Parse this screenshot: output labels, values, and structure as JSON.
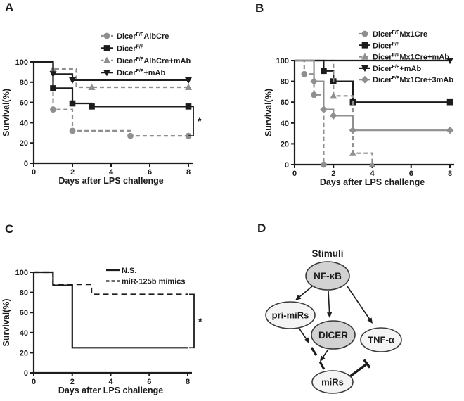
{
  "figure": {
    "colors": {
      "black": "#1c1c1c",
      "gray": "#8f8f8f",
      "node_dark_fill": "#d2d2d2",
      "node_light_fill": "#f4f4f4",
      "node_stroke": "#3a3a3a",
      "background": "#ffffff"
    }
  },
  "chart_data": [
    {
      "panel_label": "A",
      "type": "line",
      "subtype": "kaplan-meier-step",
      "title": "",
      "xlabel": "Days after LPS challenge",
      "ylabel": "Survival(%)",
      "xlim": [
        0,
        8
      ],
      "ylim": [
        0,
        100
      ],
      "xticks": [
        0,
        2,
        4,
        6,
        8
      ],
      "yticks": [
        0,
        20,
        40,
        60,
        80,
        100
      ],
      "grid": false,
      "legend_position": "top-right-inside",
      "series": [
        {
          "name": "Dicer F/F AlbCre",
          "label_parts": [
            {
              "text": "Dicer"
            },
            {
              "text": "F/F",
              "sup": true
            },
            {
              "text": "AlbCre"
            }
          ],
          "color": "gray",
          "line": "dashed",
          "marker": "circle",
          "steps": [
            [
              0,
              100
            ],
            [
              1,
              53
            ],
            [
              2,
              32
            ],
            [
              5,
              27
            ],
            [
              8,
              27
            ]
          ],
          "markers": [
            [
              1,
              53
            ],
            [
              2,
              32
            ],
            [
              5,
              27
            ],
            [
              8,
              27
            ]
          ]
        },
        {
          "name": "Dicer F/F",
          "label_parts": [
            {
              "text": "Dicer"
            },
            {
              "text": "F/F",
              "sup": true
            }
          ],
          "color": "black",
          "line": "solid",
          "marker": "square",
          "steps": [
            [
              0,
              100
            ],
            [
              1,
              74
            ],
            [
              2,
              59
            ],
            [
              3,
              56
            ],
            [
              8,
              56
            ]
          ],
          "markers": [
            [
              1,
              74
            ],
            [
              2,
              59
            ],
            [
              3,
              56
            ],
            [
              8,
              56
            ]
          ]
        },
        {
          "name": "Dicer F/F AlbCre+mAb",
          "label_parts": [
            {
              "text": "Dicer"
            },
            {
              "text": "F/F",
              "sup": true
            },
            {
              "text": "AlbCre+mAb"
            }
          ],
          "color": "gray",
          "line": "dashed",
          "marker": "triangle-up",
          "steps": [
            [
              0,
              100
            ],
            [
              1,
              93
            ],
            [
              2.2,
              75
            ],
            [
              8,
              75
            ]
          ],
          "markers": [
            [
              1,
              93
            ],
            [
              3,
              75
            ],
            [
              8,
              75
            ]
          ]
        },
        {
          "name": "Dicer F/F+mAb",
          "label_parts": [
            {
              "text": "Dicer"
            },
            {
              "text": "F/F",
              "sup": true
            },
            {
              "text": "+mAb"
            }
          ],
          "color": "black",
          "line": "solid",
          "marker": "triangle-down",
          "steps": [
            [
              0,
              100
            ],
            [
              1,
              88
            ],
            [
              2,
              82
            ],
            [
              8,
              82
            ]
          ],
          "markers": [
            [
              1,
              88
            ],
            [
              2,
              82
            ],
            [
              8,
              82
            ]
          ]
        }
      ],
      "significance": {
        "label": "*",
        "between": [
          "Dicer F/F",
          "Dicer F/F AlbCre"
        ],
        "from_pct": 56,
        "to_pct": 27
      }
    },
    {
      "panel_label": "B",
      "type": "line",
      "subtype": "kaplan-meier-step",
      "title": "",
      "xlabel": "Days after LPS challenge",
      "ylabel": "Survival(%)",
      "xlim": [
        0,
        8
      ],
      "ylim": [
        0,
        100
      ],
      "xticks": [
        0,
        2,
        4,
        6,
        8
      ],
      "yticks": [
        0,
        20,
        40,
        60,
        80,
        100
      ],
      "grid": false,
      "legend_position": "top-right-inside",
      "series": [
        {
          "name": "Dicer F/F Mx1Cre",
          "label_parts": [
            {
              "text": "Dicer"
            },
            {
              "text": "F/F",
              "sup": true
            },
            {
              "text": "Mx1Cre"
            }
          ],
          "color": "gray",
          "line": "dashed",
          "marker": "circle",
          "steps": [
            [
              0,
              100
            ],
            [
              0.5,
              87
            ],
            [
              1,
              67
            ],
            [
              1.5,
              0
            ]
          ],
          "markers": [
            [
              0.5,
              87
            ],
            [
              1,
              67
            ],
            [
              1.5,
              0
            ]
          ]
        },
        {
          "name": "Dicer F/F",
          "label_parts": [
            {
              "text": "Dicer"
            },
            {
              "text": "F/F",
              "sup": true
            }
          ],
          "color": "black",
          "line": "solid",
          "marker": "square",
          "steps": [
            [
              0,
              100
            ],
            [
              1.5,
              90
            ],
            [
              2,
              80
            ],
            [
              3,
              60
            ],
            [
              8,
              60
            ]
          ],
          "markers": [
            [
              1.5,
              90
            ],
            [
              2,
              80
            ],
            [
              3,
              60
            ],
            [
              8,
              60
            ]
          ]
        },
        {
          "name": "Dicer F/F Mx1Cre+mAb",
          "label_parts": [
            {
              "text": "Dicer"
            },
            {
              "text": "F/F",
              "sup": true
            },
            {
              "text": "Mx1Cre+mAb"
            }
          ],
          "color": "gray",
          "line": "dashed",
          "marker": "triangle-up",
          "steps": [
            [
              0,
              100
            ],
            [
              2,
              66
            ],
            [
              3,
              11
            ],
            [
              4,
              0
            ]
          ],
          "markers": [
            [
              2,
              66
            ],
            [
              3,
              11
            ],
            [
              4,
              0
            ]
          ]
        },
        {
          "name": "Dicer F/F+mAb",
          "label_parts": [
            {
              "text": "Dicer"
            },
            {
              "text": "F/F",
              "sup": true
            },
            {
              "text": "+mAb"
            }
          ],
          "color": "black",
          "line": "solid",
          "marker": "triangle-down",
          "steps": [
            [
              0,
              100
            ],
            [
              8,
              100
            ]
          ],
          "markers": [
            [
              8,
              100
            ]
          ]
        },
        {
          "name": "Dicer F/F Mx1Cre+3mAb",
          "label_parts": [
            {
              "text": "Dicer"
            },
            {
              "text": "F/F",
              "sup": true
            },
            {
              "text": "Mx1Cre+3mAb"
            }
          ],
          "color": "gray",
          "line": "solid",
          "marker": "diamond",
          "steps": [
            [
              0,
              100
            ],
            [
              1,
              80
            ],
            [
              1.5,
              53
            ],
            [
              2,
              47
            ],
            [
              3,
              33
            ],
            [
              8,
              33
            ]
          ],
          "markers": [
            [
              1,
              80
            ],
            [
              1.5,
              53
            ],
            [
              2,
              47
            ],
            [
              3,
              33
            ],
            [
              8,
              33
            ]
          ]
        }
      ],
      "significance": null
    },
    {
      "panel_label": "C",
      "type": "line",
      "subtype": "kaplan-meier-step",
      "title": "",
      "xlabel": "Days after LPS challenge",
      "ylabel": "Survival(%)",
      "xlim": [
        0,
        8
      ],
      "ylim": [
        0,
        100
      ],
      "xticks": [
        0,
        2,
        4,
        6,
        8
      ],
      "yticks": [
        0,
        20,
        40,
        60,
        80,
        100
      ],
      "grid": false,
      "legend_position": "top-right-inside",
      "series": [
        {
          "name": "N.S.",
          "label_parts": [
            {
              "text": "N.S."
            }
          ],
          "color": "black",
          "line": "solid",
          "marker": "none",
          "steps": [
            [
              0,
              100
            ],
            [
              1,
              87
            ],
            [
              2,
              25
            ],
            [
              8,
              25
            ]
          ],
          "markers": []
        },
        {
          "name": "miR-125b mimics",
          "label_parts": [
            {
              "text": "miR-125b mimics"
            }
          ],
          "color": "black",
          "line": "dashed",
          "marker": "none",
          "steps": [
            [
              0,
              100
            ],
            [
              1,
              88
            ],
            [
              3,
              78
            ],
            [
              8,
              78
            ]
          ],
          "markers": []
        }
      ],
      "significance": {
        "label": "*",
        "between": [
          "miR-125b mimics",
          "N.S."
        ],
        "from_pct": 78,
        "to_pct": 25
      }
    }
  ],
  "diagram": {
    "panel_label": "D",
    "title": "Stimuli",
    "nodes": [
      {
        "label": "NF-κB",
        "shade": "dark"
      },
      {
        "label": "pri-miRs",
        "shade": "light"
      },
      {
        "label": "DICER",
        "shade": "dark"
      },
      {
        "label": "TNF-α",
        "shade": "light"
      },
      {
        "label": "miRs",
        "shade": "light"
      }
    ],
    "edges": [
      {
        "from": "NF-κB",
        "to": "pri-miRs",
        "type": "arrow"
      },
      {
        "from": "NF-κB",
        "to": "DICER",
        "type": "arrow"
      },
      {
        "from": "NF-κB",
        "to": "TNF-α",
        "type": "arrow"
      },
      {
        "from": "pri-miRs",
        "to": "miRs",
        "type": "dashed-arrow"
      },
      {
        "from": "DICER",
        "to": "miRs",
        "type": "arrow"
      },
      {
        "from": "miRs",
        "to": "TNF-α",
        "type": "inhibition"
      }
    ]
  }
}
